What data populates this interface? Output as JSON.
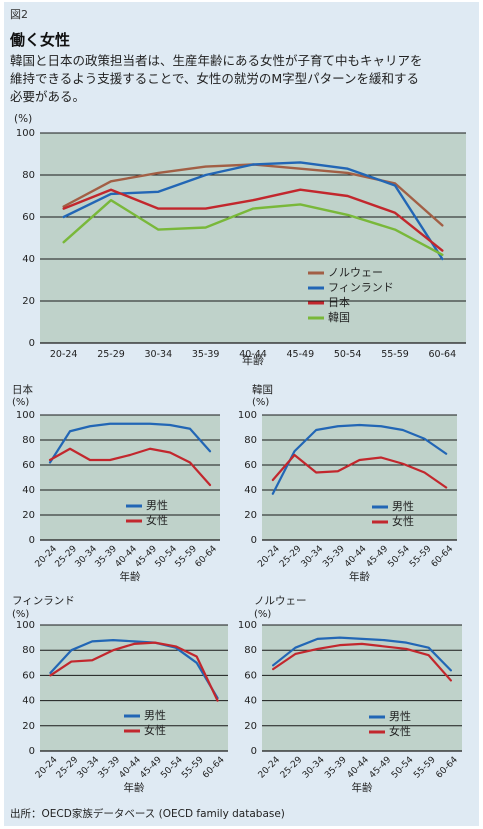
{
  "figure_label": "図2",
  "heading": "働く女性",
  "lead_lines": [
    "韓国と日本の政策担当者は、生産年齢にある女性が子育て中もキャリアを",
    "維持できるよう支援することで、女性の就労のM字型パターンを緩和する",
    "必要がある。"
  ],
  "source": "出所：OECD家族データベース (OECD family database)",
  "colors": {
    "plot_bg": "#bfd2ca",
    "grid": "#1a1a1a",
    "norway": "#a25f45",
    "finland": "#2266b5",
    "japan": "#c2272d",
    "korea": "#79b83a",
    "male": "#2266b5",
    "female": "#c2272d"
  },
  "chart_data": [
    {
      "type": "line",
      "title": "",
      "unit": "(%)",
      "xlabel": "年齢",
      "ylim": [
        0,
        100
      ],
      "yticks": [
        "0",
        "20",
        "40",
        "60",
        "80",
        "100"
      ],
      "categories": [
        "20-24",
        "25-29",
        "30-34",
        "35-39",
        "40-44",
        "45-49",
        "50-54",
        "55-59",
        "60-64"
      ],
      "legend_position": "bottom-right",
      "grid": true,
      "series": [
        {
          "name": "ノルウェー",
          "color_key": "norway",
          "values": [
            65,
            77,
            81,
            84,
            85,
            83,
            81,
            76,
            56
          ]
        },
        {
          "name": "フィンランド",
          "color_key": "finland",
          "values": [
            60,
            71,
            72,
            80,
            85,
            86,
            83,
            75,
            40
          ]
        },
        {
          "name": "日本",
          "color_key": "japan",
          "values": [
            64,
            73,
            64,
            64,
            68,
            73,
            70,
            62,
            44
          ]
        },
        {
          "name": "韓国",
          "color_key": "korea",
          "values": [
            48,
            68,
            54,
            55,
            64,
            66,
            61,
            54,
            42
          ]
        }
      ]
    },
    {
      "type": "line",
      "title": "日本",
      "unit": "(%)",
      "xlabel": "年齢",
      "ylim": [
        0,
        100
      ],
      "yticks": [
        "0",
        "20",
        "40",
        "60",
        "80",
        "100"
      ],
      "categories": [
        "20-24",
        "25-29",
        "30-34",
        "35-39",
        "40-44",
        "45-49",
        "50-54",
        "55-59",
        "60-64"
      ],
      "legend_position": "bottom-center",
      "grid": true,
      "series": [
        {
          "name": "男性",
          "color_key": "male",
          "values": [
            62,
            87,
            91,
            93,
            93,
            93,
            92,
            89,
            71
          ]
        },
        {
          "name": "女性",
          "color_key": "female",
          "values": [
            64,
            73,
            64,
            64,
            68,
            73,
            70,
            62,
            44
          ]
        }
      ]
    },
    {
      "type": "line",
      "title": "韓国",
      "unit": "(%)",
      "xlabel": "年齢",
      "ylim": [
        0,
        100
      ],
      "yticks": [
        "0",
        "20",
        "40",
        "60",
        "80",
        "100"
      ],
      "categories": [
        "20-24",
        "25-29",
        "30-34",
        "35-39",
        "40-44",
        "45-49",
        "50-54",
        "55-59",
        "60-64"
      ],
      "legend_position": "bottom-center",
      "grid": true,
      "series": [
        {
          "name": "男性",
          "color_key": "male",
          "values": [
            37,
            71,
            88,
            91,
            92,
            91,
            88,
            81,
            69
          ]
        },
        {
          "name": "女性",
          "color_key": "female",
          "values": [
            48,
            68,
            54,
            55,
            64,
            66,
            61,
            54,
            42
          ]
        }
      ]
    },
    {
      "type": "line",
      "title": "フィンランド",
      "unit": "(%)",
      "xlabel": "年齢",
      "ylim": [
        0,
        100
      ],
      "yticks": [
        "0",
        "20",
        "40",
        "60",
        "80",
        "100"
      ],
      "categories": [
        "20-24",
        "25-29",
        "30-34",
        "35-39",
        "40-44",
        "45-49",
        "50-54",
        "55-59",
        "60-64"
      ],
      "legend_position": "bottom-center",
      "grid": true,
      "series": [
        {
          "name": "男性",
          "color_key": "male",
          "values": [
            62,
            80,
            87,
            88,
            87,
            86,
            82,
            70,
            42
          ]
        },
        {
          "name": "女性",
          "color_key": "female",
          "values": [
            60,
            71,
            72,
            80,
            85,
            86,
            83,
            75,
            40
          ]
        }
      ]
    },
    {
      "type": "line",
      "title": "ノルウェー",
      "unit": "(%)",
      "xlabel": "年齢",
      "ylim": [
        0,
        100
      ],
      "yticks": [
        "0",
        "20",
        "40",
        "60",
        "80",
        "100"
      ],
      "categories": [
        "20-24",
        "25-29",
        "30-34",
        "35-39",
        "40-44",
        "45-49",
        "50-54",
        "55-59",
        "60-64"
      ],
      "legend_position": "bottom-center",
      "grid": true,
      "series": [
        {
          "name": "男性",
          "color_key": "male",
          "values": [
            68,
            82,
            89,
            90,
            89,
            88,
            86,
            82,
            64
          ]
        },
        {
          "name": "女性",
          "color_key": "female",
          "values": [
            65,
            77,
            81,
            84,
            85,
            83,
            81,
            76,
            56
          ]
        }
      ]
    }
  ]
}
